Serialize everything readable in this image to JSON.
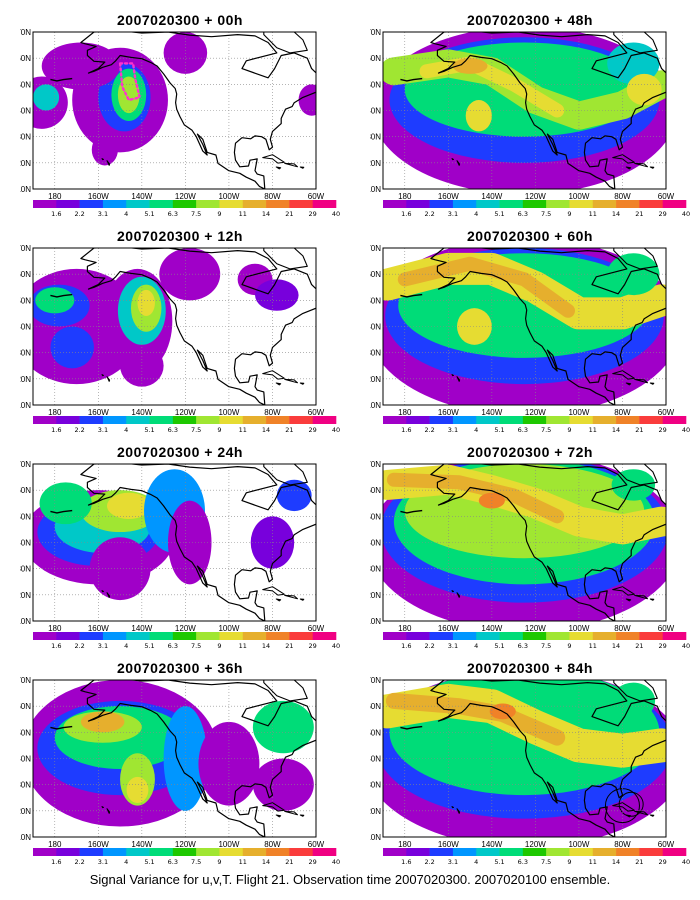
{
  "panels": [
    {
      "title": "2007020300 + 00h",
      "lead": 0
    },
    {
      "title": "2007020300 + 48h",
      "lead": 48
    },
    {
      "title": "2007020300 + 12h",
      "lead": 12
    },
    {
      "title": "2007020300 + 60h",
      "lead": 60
    },
    {
      "title": "2007020300 + 24h",
      "lead": 24
    },
    {
      "title": "2007020300 + 72h",
      "lead": 72
    },
    {
      "title": "2007020300 + 36h",
      "lead": 36
    },
    {
      "title": "2007020300 + 84h",
      "lead": 84
    }
  ],
  "axes": {
    "lat_labels": [
      "70N",
      "60N",
      "50N",
      "40N",
      "30N",
      "20N",
      "10N"
    ],
    "lat_values": [
      70,
      60,
      50,
      40,
      30,
      20,
      10
    ],
    "lon_labels": [
      "180",
      "160W",
      "140W",
      "120W",
      "100W",
      "80W",
      "60W"
    ],
    "lon_values": [
      -180,
      -160,
      -140,
      -120,
      -100,
      -80,
      -60
    ],
    "lon_range": [
      -190,
      -60
    ],
    "lat_range": [
      10,
      70
    ]
  },
  "colorbar": {
    "labels": [
      "1.6",
      "2.2",
      "3.1",
      "4",
      "5.1",
      "6.3",
      "7.5",
      "9",
      "11",
      "14",
      "21",
      "29",
      "40"
    ],
    "colors": [
      "#a000c8",
      "#7800dc",
      "#1e3cff",
      "#0096ff",
      "#00c8c8",
      "#00dc78",
      "#1ec800",
      "#a0e632",
      "#e6dc32",
      "#e6af2d",
      "#f08228",
      "#fa3c3c",
      "#f00082"
    ]
  },
  "caption": "Signal Variance for u,v,T. Flight 21. Observation time 2007020300. 2007020100 ensemble."
}
